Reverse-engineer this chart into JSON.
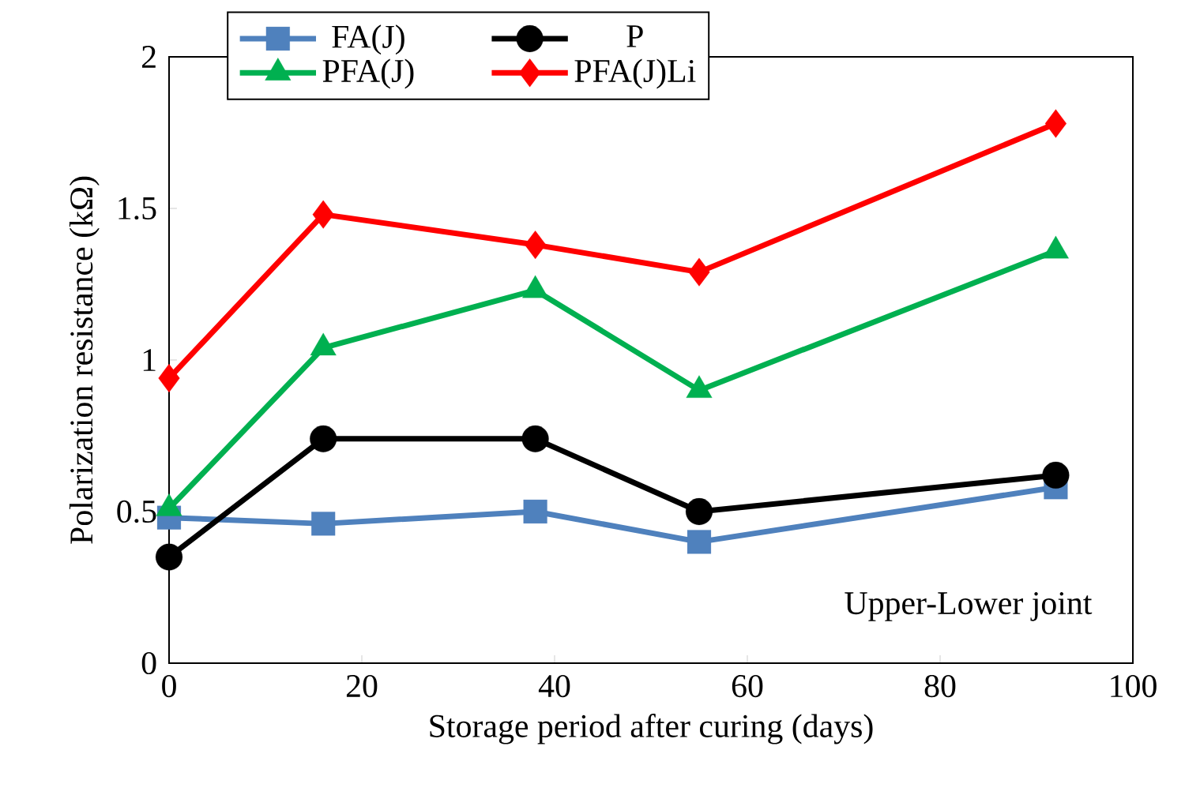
{
  "chart_data": {
    "type": "line",
    "xlabel": "Storage period after curing (days)",
    "ylabel": "Polarization resistance (kΩ)",
    "x": [
      0,
      16,
      38,
      55,
      92
    ],
    "series": [
      {
        "name": "FA(J)",
        "color": "#4f81bd",
        "marker": "square",
        "values": [
          0.48,
          0.46,
          0.5,
          0.4,
          0.58
        ]
      },
      {
        "name": "P",
        "color": "#000000",
        "marker": "circle",
        "values": [
          0.35,
          0.74,
          0.74,
          0.5,
          0.62
        ]
      },
      {
        "name": "PFA(J)",
        "color": "#00b050",
        "marker": "triangle",
        "values": [
          0.51,
          1.04,
          1.23,
          0.9,
          1.36
        ]
      },
      {
        "name": "PFA(J)Li",
        "color": "#ff0000",
        "marker": "diamond",
        "values": [
          0.94,
          1.48,
          1.38,
          1.29,
          1.78
        ]
      }
    ],
    "xlim": [
      0,
      100
    ],
    "ylim": [
      0,
      2
    ],
    "xticks": [
      0,
      20,
      40,
      60,
      80,
      100
    ],
    "yticks": [
      0,
      0.5,
      1,
      1.5,
      2
    ],
    "legend": "top left",
    "grid": false,
    "annotations": [
      "Upper-Lower joint"
    ]
  }
}
